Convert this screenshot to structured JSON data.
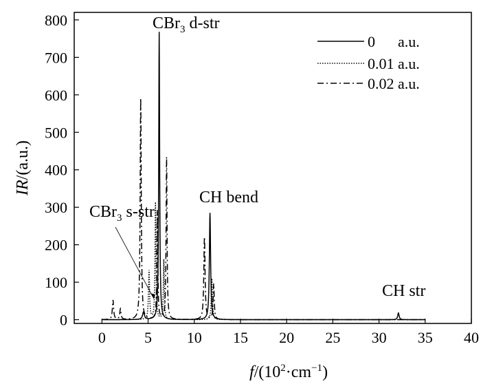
{
  "chart_data": {
    "type": "line",
    "xlabel": {
      "var": "f",
      "rest": "/(10",
      "sup1": "2",
      "mid": "·cm",
      "sup2": "−1",
      "end": ")"
    },
    "ylabel": {
      "var": "IR",
      "rest": "/(a.u.)"
    },
    "xlim": [
      -3,
      40
    ],
    "ylim": [
      -10,
      820
    ],
    "xticks": [
      0,
      5,
      10,
      15,
      20,
      25,
      30,
      35,
      40
    ],
    "yticks": [
      0,
      100,
      200,
      300,
      400,
      500,
      600,
      700,
      800
    ],
    "grid": false,
    "legend_position": "top-right",
    "series": [
      {
        "name": "0      a.u.",
        "style": "solid",
        "color": "#000000",
        "peaks": [
          {
            "x": 4.5,
            "y": 20,
            "w": 0.12
          },
          {
            "x": 6.2,
            "y": 768,
            "w": 0.06
          },
          {
            "x": 11.7,
            "y": 285,
            "w": 0.08
          },
          {
            "x": 32.1,
            "y": 18,
            "w": 0.09
          }
        ]
      },
      {
        "name": "0.01 a.u.",
        "style": "dotted",
        "color": "#000000",
        "peaks": [
          {
            "x": 5.1,
            "y": 130,
            "w": 0.07
          },
          {
            "x": 5.8,
            "y": 312,
            "w": 0.06
          },
          {
            "x": 6.7,
            "y": 160,
            "w": 0.06
          },
          {
            "x": 11.9,
            "y": 110,
            "w": 0.07
          }
        ]
      },
      {
        "name": "0.02 a.u.",
        "style": "dashdot",
        "color": "#000000",
        "peaks": [
          {
            "x": 1.2,
            "y": 52,
            "w": 0.08
          },
          {
            "x": 2.0,
            "y": 28,
            "w": 0.08
          },
          {
            "x": 4.2,
            "y": 590,
            "w": 0.07
          },
          {
            "x": 6.0,
            "y": 290,
            "w": 0.06
          },
          {
            "x": 7.0,
            "y": 433,
            "w": 0.06
          },
          {
            "x": 11.1,
            "y": 220,
            "w": 0.08
          },
          {
            "x": 12.1,
            "y": 95,
            "w": 0.07
          }
        ]
      }
    ],
    "annotations": [
      {
        "main": "CBr",
        "sub": "3",
        "rest": " d-str"
      },
      {
        "main": "CBr",
        "sub": "3",
        "rest": " s-str"
      },
      {
        "main": "CH bend",
        "sub": "",
        "rest": ""
      },
      {
        "main": "CH str",
        "sub": "",
        "rest": ""
      }
    ]
  }
}
